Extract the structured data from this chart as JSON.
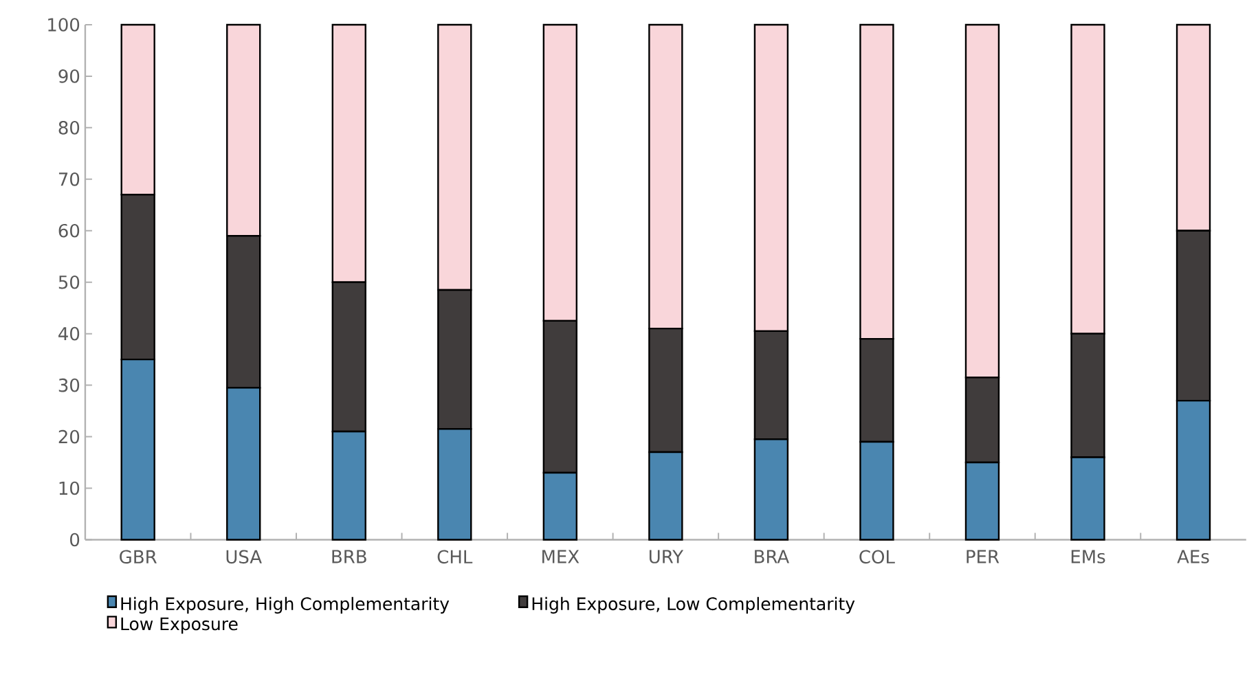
{
  "chart_data": {
    "type": "bar",
    "stacked": true,
    "legend": "bottom",
    "categories": [
      "GBR",
      "USA",
      "BRB",
      "CHL",
      "MEX",
      "URY",
      "BRA",
      "COL",
      "PER",
      "EMs",
      "AEs"
    ],
    "series": [
      {
        "name": "High Exposure, High Complementarity",
        "color": "#4a86b0",
        "values": [
          35,
          29.5,
          21,
          21.5,
          13,
          17,
          19.5,
          19,
          15,
          16,
          27
        ]
      },
      {
        "name": "High Exposure, Low Complementarity",
        "color": "#403c3c",
        "values": [
          32,
          29.5,
          29,
          27,
          29.5,
          24,
          21,
          20,
          16.5,
          24,
          33
        ]
      },
      {
        "name": "Low Exposure",
        "color": "#f9d6da",
        "values": [
          33,
          41,
          50,
          51.5,
          57.5,
          59,
          59.5,
          61,
          68.5,
          60,
          40
        ]
      }
    ],
    "ylim": [
      0,
      100
    ],
    "yticks": [
      0,
      10,
      20,
      30,
      40,
      50,
      60,
      70,
      80,
      90,
      100
    ]
  }
}
